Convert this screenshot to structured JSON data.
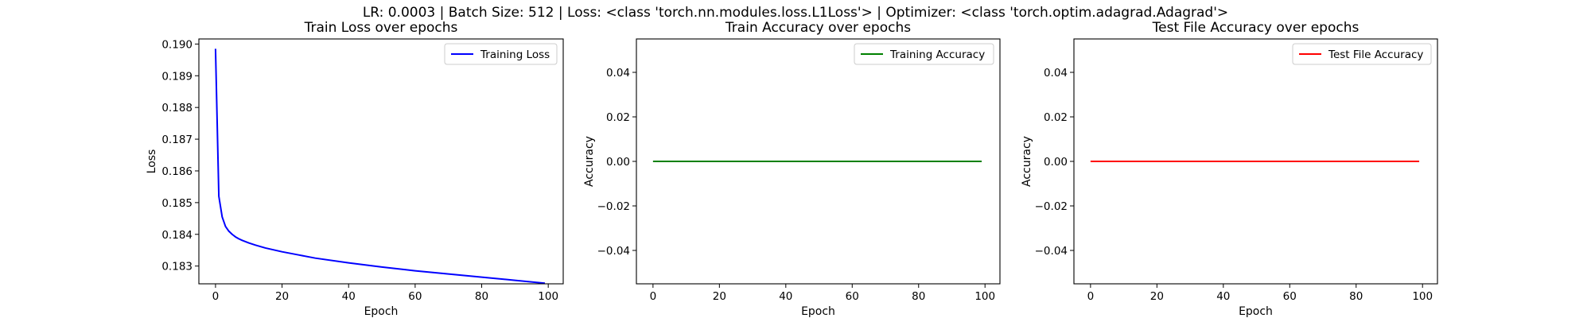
{
  "figure": {
    "suptitle": "LR: 0.0003 | Batch Size: 512 | Loss: <class 'torch.nn.modules.loss.L1Loss'> | Optimizer: <class 'torch.optim.adagrad.Adagrad'>"
  },
  "chart_data": [
    {
      "type": "line",
      "title": "Train Loss over epochs",
      "xlabel": "Epoch",
      "ylabel": "Loss",
      "xlim": [
        -5,
        104.5
      ],
      "ylim": [
        0.18244,
        0.19016
      ],
      "xticks": [
        0,
        20,
        40,
        60,
        80,
        100
      ],
      "yticks": [
        0.183,
        0.184,
        0.185,
        0.186,
        0.187,
        0.188,
        0.189,
        0.19
      ],
      "ytick_labels": [
        "0.183",
        "0.184",
        "0.185",
        "0.186",
        "0.187",
        "0.188",
        "0.189",
        "0.190"
      ],
      "legend_position": "upper right",
      "grid": false,
      "series": [
        {
          "name": "Training Loss",
          "color": "#0000ff",
          "x": [
            0,
            1,
            2,
            3,
            4,
            5,
            6,
            7,
            8,
            9,
            10,
            12,
            15,
            20,
            25,
            30,
            40,
            50,
            60,
            70,
            80,
            90,
            99
          ],
          "y": [
            0.18985,
            0.1852,
            0.18455,
            0.18425,
            0.1841,
            0.184,
            0.18392,
            0.18386,
            0.18381,
            0.18377,
            0.18373,
            0.18366,
            0.18357,
            0.18345,
            0.18335,
            0.18325,
            0.1831,
            0.18297,
            0.18285,
            0.18275,
            0.18265,
            0.18255,
            0.18246
          ]
        }
      ]
    },
    {
      "type": "line",
      "title": "Train Accuracy over epochs",
      "xlabel": "Epoch",
      "ylabel": "Accuracy",
      "xlim": [
        -5,
        104.5
      ],
      "ylim": [
        -0.055,
        0.055
      ],
      "xticks": [
        0,
        20,
        40,
        60,
        80,
        100
      ],
      "yticks": [
        -0.04,
        -0.02,
        0.0,
        0.02,
        0.04
      ],
      "ytick_labels": [
        "−0.04",
        "−0.02",
        "0.00",
        "0.02",
        "0.04"
      ],
      "legend_position": "upper right",
      "grid": false,
      "series": [
        {
          "name": "Training Accuracy",
          "color": "#008000",
          "x": [
            0,
            99
          ],
          "y": [
            0.0,
            0.0
          ]
        }
      ]
    },
    {
      "type": "line",
      "title": "Test File Accuracy over epochs",
      "xlabel": "Epoch",
      "ylabel": "Accuracy",
      "xlim": [
        -5,
        104.5
      ],
      "ylim": [
        -0.055,
        0.055
      ],
      "xticks": [
        0,
        20,
        40,
        60,
        80,
        100
      ],
      "yticks": [
        -0.04,
        -0.02,
        0.0,
        0.02,
        0.04
      ],
      "ytick_labels": [
        "−0.04",
        "−0.02",
        "0.00",
        "0.02",
        "0.04"
      ],
      "legend_position": "upper right",
      "grid": false,
      "series": [
        {
          "name": "Test File Accuracy",
          "color": "#ff0000",
          "x": [
            0,
            99
          ],
          "y": [
            0.0,
            0.0
          ]
        }
      ]
    }
  ]
}
